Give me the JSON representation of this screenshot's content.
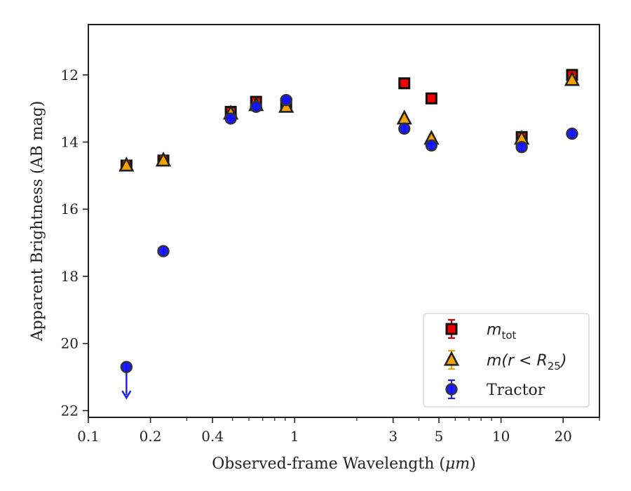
{
  "chart_data": {
    "type": "scatter",
    "xlabel_prefix": "Observed-frame Wavelength (",
    "xlabel_unit": "μm",
    "xlabel_suffix": ")",
    "ylabel": "Apparent Brightness (AB mag)",
    "xscale": "log",
    "yscale": "linear",
    "yinverted": true,
    "xlim": [
      0.1,
      30
    ],
    "ylim": [
      22.2,
      10.5
    ],
    "x_major_ticks": [
      {
        "value": 0.1,
        "label": "0.1"
      },
      {
        "value": 0.2,
        "label": "0.2"
      },
      {
        "value": 0.4,
        "label": "0.4"
      },
      {
        "value": 1,
        "label": "1"
      },
      {
        "value": 3,
        "label": "3"
      },
      {
        "value": 5,
        "label": "5"
      },
      {
        "value": 10,
        "label": "10"
      },
      {
        "value": 20,
        "label": "20"
      }
    ],
    "x_minor_ticks": [
      0.3,
      0.5,
      0.6,
      0.7,
      0.8,
      0.9,
      2,
      4,
      6,
      7,
      8,
      9,
      30
    ],
    "y_ticks": [
      {
        "value": 12,
        "label": "12"
      },
      {
        "value": 14,
        "label": "14"
      },
      {
        "value": 16,
        "label": "16"
      },
      {
        "value": 18,
        "label": "18"
      },
      {
        "value": 20,
        "label": "20"
      },
      {
        "value": 22,
        "label": "22"
      }
    ],
    "grid": false,
    "legend_position": "bottom-right",
    "series": [
      {
        "name_base": "m",
        "name_sub": "tot",
        "marker": "square",
        "color": "#ee0000",
        "edge_color": "#111111",
        "error_color": "#cc0000",
        "points": [
          {
            "x": 0.153,
            "y": 14.7
          },
          {
            "x": 0.231,
            "y": 14.55
          },
          {
            "x": 0.49,
            "y": 13.1
          },
          {
            "x": 0.65,
            "y": 12.8
          },
          {
            "x": 0.91,
            "y": 12.85
          },
          {
            "x": 3.4,
            "y": 12.25
          },
          {
            "x": 4.6,
            "y": 12.7
          },
          {
            "x": 12.6,
            "y": 13.85
          },
          {
            "x": 22.1,
            "y": 12.0
          }
        ]
      },
      {
        "name_base": "m(r < R",
        "name_sub": "25",
        "name_suffix": ")",
        "marker": "triangle",
        "color": "#f5a300",
        "edge_color": "#222222",
        "error_color": "#f5a300",
        "points": [
          {
            "x": 0.153,
            "y": 14.7
          },
          {
            "x": 0.231,
            "y": 14.55
          },
          {
            "x": 0.49,
            "y": 13.15
          },
          {
            "x": 0.65,
            "y": 12.9
          },
          {
            "x": 0.91,
            "y": 12.95
          },
          {
            "x": 3.4,
            "y": 13.3
          },
          {
            "x": 4.6,
            "y": 13.9
          },
          {
            "x": 12.6,
            "y": 13.9
          },
          {
            "x": 22.1,
            "y": 12.15
          }
        ]
      },
      {
        "name": "Tractor",
        "marker": "circle",
        "color": "#1010ff",
        "edge_color": "#333333",
        "error_color": "#2020ee",
        "points": [
          {
            "x": 0.153,
            "y": 20.7,
            "upper_limit": true
          },
          {
            "x": 0.231,
            "y": 17.25
          },
          {
            "x": 0.49,
            "y": 13.3
          },
          {
            "x": 0.65,
            "y": 12.95
          },
          {
            "x": 0.91,
            "y": 12.75
          },
          {
            "x": 3.4,
            "y": 13.6
          },
          {
            "x": 4.6,
            "y": 14.1
          },
          {
            "x": 12.6,
            "y": 14.15
          },
          {
            "x": 22.1,
            "y": 13.75
          }
        ]
      }
    ]
  }
}
